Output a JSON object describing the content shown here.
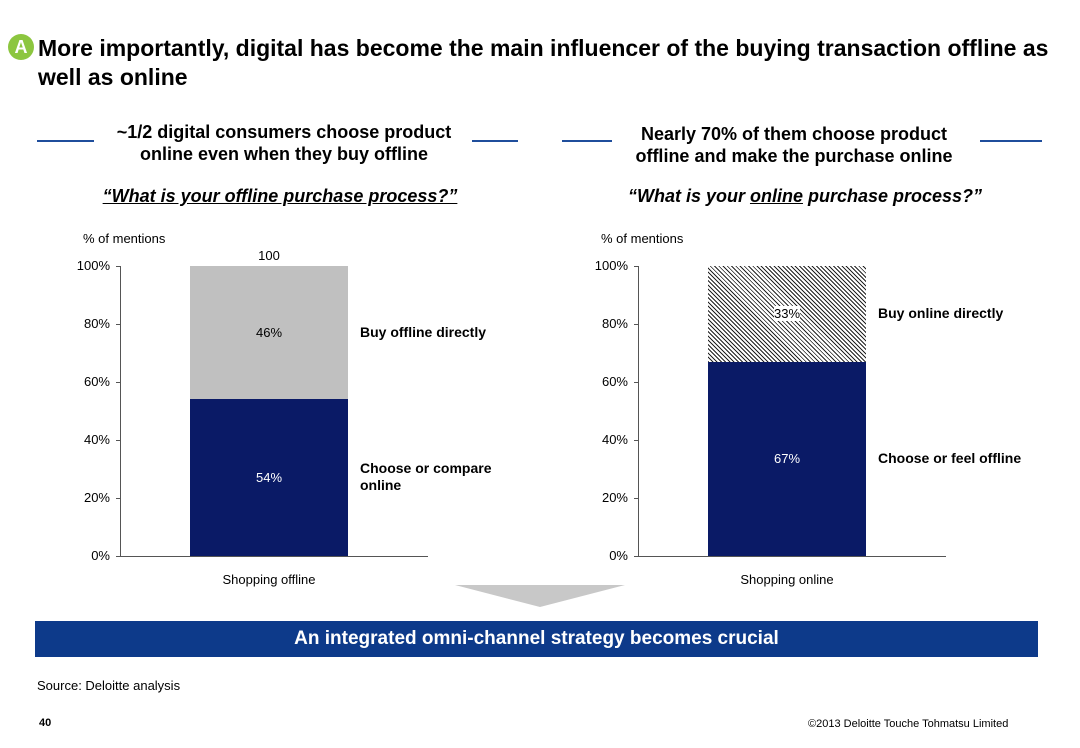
{
  "header": {
    "badge": "A",
    "title": "More importantly, digital has become the main influencer of the buying transaction offline as well as online"
  },
  "left": {
    "subtitle": "~1/2 digital consumers choose product online even when they buy offline",
    "question": "“What is your offline purchase process?”"
  },
  "right": {
    "subtitle": "Nearly 70% of them choose product offline and make the purchase online",
    "question_pre": "“What is your ",
    "question_ul": "online",
    "question_post": " purchase process?”"
  },
  "chart_data": [
    {
      "type": "bar",
      "stacked": true,
      "ylabel": "% of mentions",
      "ylim": [
        0,
        100
      ],
      "yticks": [
        "0%",
        "20%",
        "40%",
        "60%",
        "80%",
        "100%"
      ],
      "categories": [
        "Shopping offline"
      ],
      "total_label": "100",
      "series": [
        {
          "name": "Choose or compare online",
          "values": [
            54
          ],
          "label": "54%",
          "color": "#0a1a66"
        },
        {
          "name": "Buy offline directly",
          "values": [
            46
          ],
          "label": "46%",
          "color": "#c0c0c0"
        }
      ]
    },
    {
      "type": "bar",
      "stacked": true,
      "ylabel": "% of mentions",
      "ylim": [
        0,
        100
      ],
      "yticks": [
        "0%",
        "20%",
        "40%",
        "60%",
        "80%",
        "100%"
      ],
      "categories": [
        "Shopping online"
      ],
      "series": [
        {
          "name": "Choose or feel offline",
          "values": [
            67
          ],
          "label": "67%",
          "color": "#0a1a66"
        },
        {
          "name": "Buy online directly",
          "values": [
            33
          ],
          "label": "33%",
          "color": "hatch"
        }
      ]
    }
  ],
  "banner": "An integrated omni-channel strategy becomes crucial",
  "source": "Source: Deloitte analysis",
  "page_number": "40",
  "copyright": "©2013 Deloitte Touche Tohmatsu Limited"
}
